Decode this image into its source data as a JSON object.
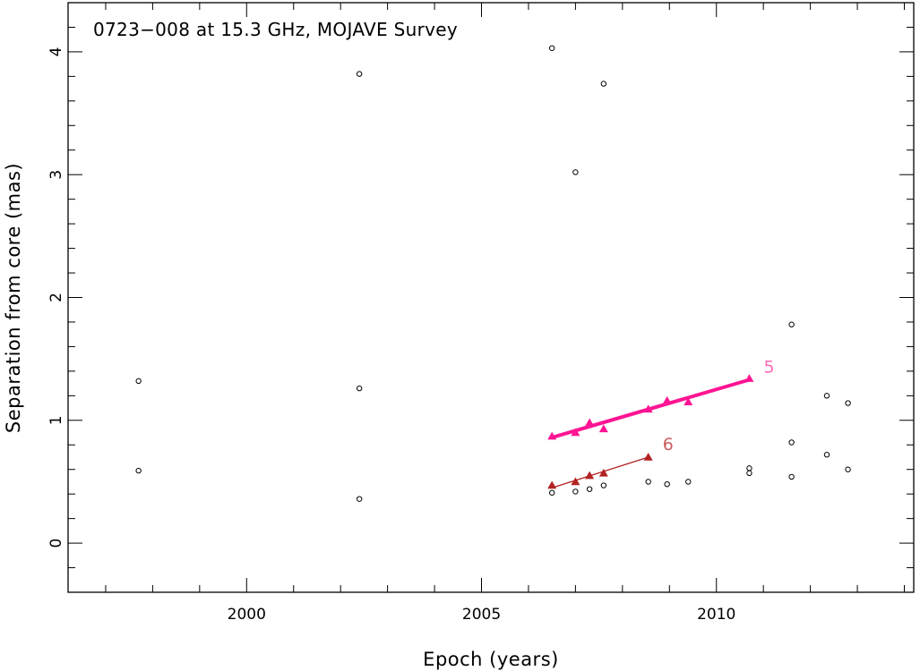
{
  "chart_data": {
    "type": "scatter",
    "title": "0723−008 at 15.3 GHz, MOJAVE Survey",
    "xlabel": "Epoch (years)",
    "ylabel": "Separation from core (mas)",
    "xlim": [
      1996.2,
      2014.2
    ],
    "ylim": [
      -0.4,
      4.4
    ],
    "xticks": [
      2000,
      2005,
      2010
    ],
    "xtick_labels": [
      "2000",
      "2005",
      "2010"
    ],
    "yticks": [
      0,
      1,
      2,
      3,
      4
    ],
    "ytick_labels": [
      "0",
      "1",
      "2",
      "3",
      "4"
    ],
    "grid": false,
    "series": [
      {
        "label": "",
        "marker": "open-circle",
        "color": "#000000",
        "points": [
          [
            1997.7,
            1.32
          ],
          [
            1997.7,
            0.59
          ],
          [
            2002.4,
            3.82
          ],
          [
            2002.4,
            1.26
          ],
          [
            2002.4,
            0.36
          ],
          [
            2006.5,
            4.03
          ],
          [
            2006.5,
            0.41
          ],
          [
            2007.0,
            3.02
          ],
          [
            2007.0,
            0.42
          ],
          [
            2007.3,
            0.44
          ],
          [
            2007.6,
            3.74
          ],
          [
            2007.6,
            0.47
          ],
          [
            2008.55,
            0.5
          ],
          [
            2008.95,
            0.48
          ],
          [
            2009.4,
            0.5
          ],
          [
            2010.7,
            0.61
          ],
          [
            2010.7,
            0.57
          ],
          [
            2011.6,
            1.78
          ],
          [
            2011.6,
            0.82
          ],
          [
            2011.6,
            0.54
          ],
          [
            2012.35,
            1.2
          ],
          [
            2012.35,
            0.72
          ],
          [
            2012.8,
            1.14
          ],
          [
            2012.8,
            0.6
          ]
        ]
      },
      {
        "label": "5",
        "marker": "filled-triangle",
        "color": "#ff1493",
        "points": [
          [
            2006.5,
            0.87
          ],
          [
            2007.0,
            0.9
          ],
          [
            2007.3,
            0.98
          ],
          [
            2007.6,
            0.93
          ],
          [
            2008.55,
            1.09
          ],
          [
            2008.95,
            1.16
          ],
          [
            2009.4,
            1.15
          ],
          [
            2010.7,
            1.34
          ]
        ],
        "fit": [
          [
            2006.5,
            0.86
          ],
          [
            2010.7,
            1.33
          ]
        ]
      },
      {
        "label": "6",
        "marker": "filled-triangle",
        "color": "#b22222",
        "points": [
          [
            2006.5,
            0.47
          ],
          [
            2007.0,
            0.5
          ],
          [
            2007.3,
            0.55
          ],
          [
            2007.6,
            0.57
          ],
          [
            2008.55,
            0.7
          ]
        ],
        "fit": [
          [
            2006.5,
            0.45
          ],
          [
            2008.55,
            0.7
          ]
        ]
      }
    ]
  }
}
